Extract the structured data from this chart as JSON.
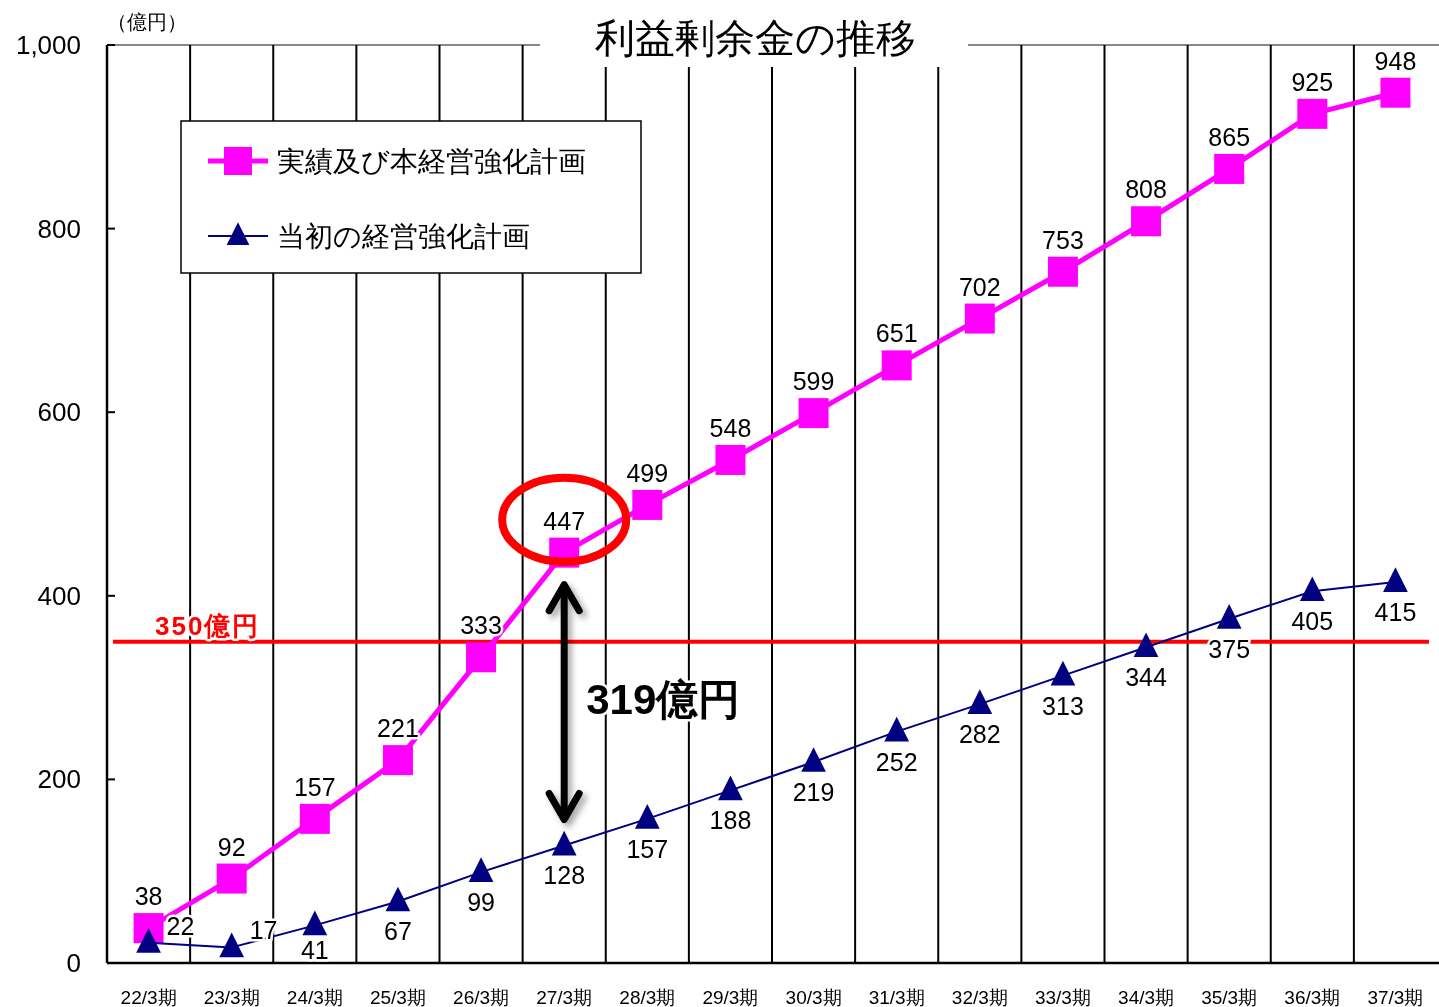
{
  "chart_data": {
    "type": "line",
    "title": "利益剰余金の推移",
    "ylabel": "（億円）",
    "categories": [
      "22/3期",
      "23/3期",
      "24/3期",
      "25/3期",
      "26/3期",
      "27/3期",
      "28/3期",
      "29/3期",
      "30/3期",
      "31/3期",
      "32/3期",
      "33/3期",
      "34/3期",
      "35/3期",
      "36/3期",
      "37/3期"
    ],
    "series": [
      {
        "name": "実績及び本経営強化計画",
        "color": "#ff00ff",
        "marker": "square",
        "values": [
          38,
          92,
          157,
          221,
          333,
          447,
          499,
          548,
          599,
          651,
          702,
          753,
          808,
          865,
          925,
          948
        ]
      },
      {
        "name": "当初の経営強化計画",
        "color": "#000080",
        "marker": "triangle",
        "values": [
          22,
          17,
          41,
          67,
          99,
          128,
          157,
          188,
          219,
          252,
          282,
          313,
          344,
          375,
          405,
          415
        ]
      }
    ],
    "ylim": [
      0,
      1000
    ],
    "yticks": [
      0,
      200,
      400,
      600,
      800,
      {
        "value": 1000,
        "label": "1,000"
      }
    ],
    "grid": "x",
    "legend": "top left",
    "data_labels": true,
    "ref_lines": [
      {
        "axis": "y",
        "value": 350,
        "label": "350億円",
        "color": "#ff0000"
      }
    ],
    "annotations": [
      "319億円"
    ]
  }
}
